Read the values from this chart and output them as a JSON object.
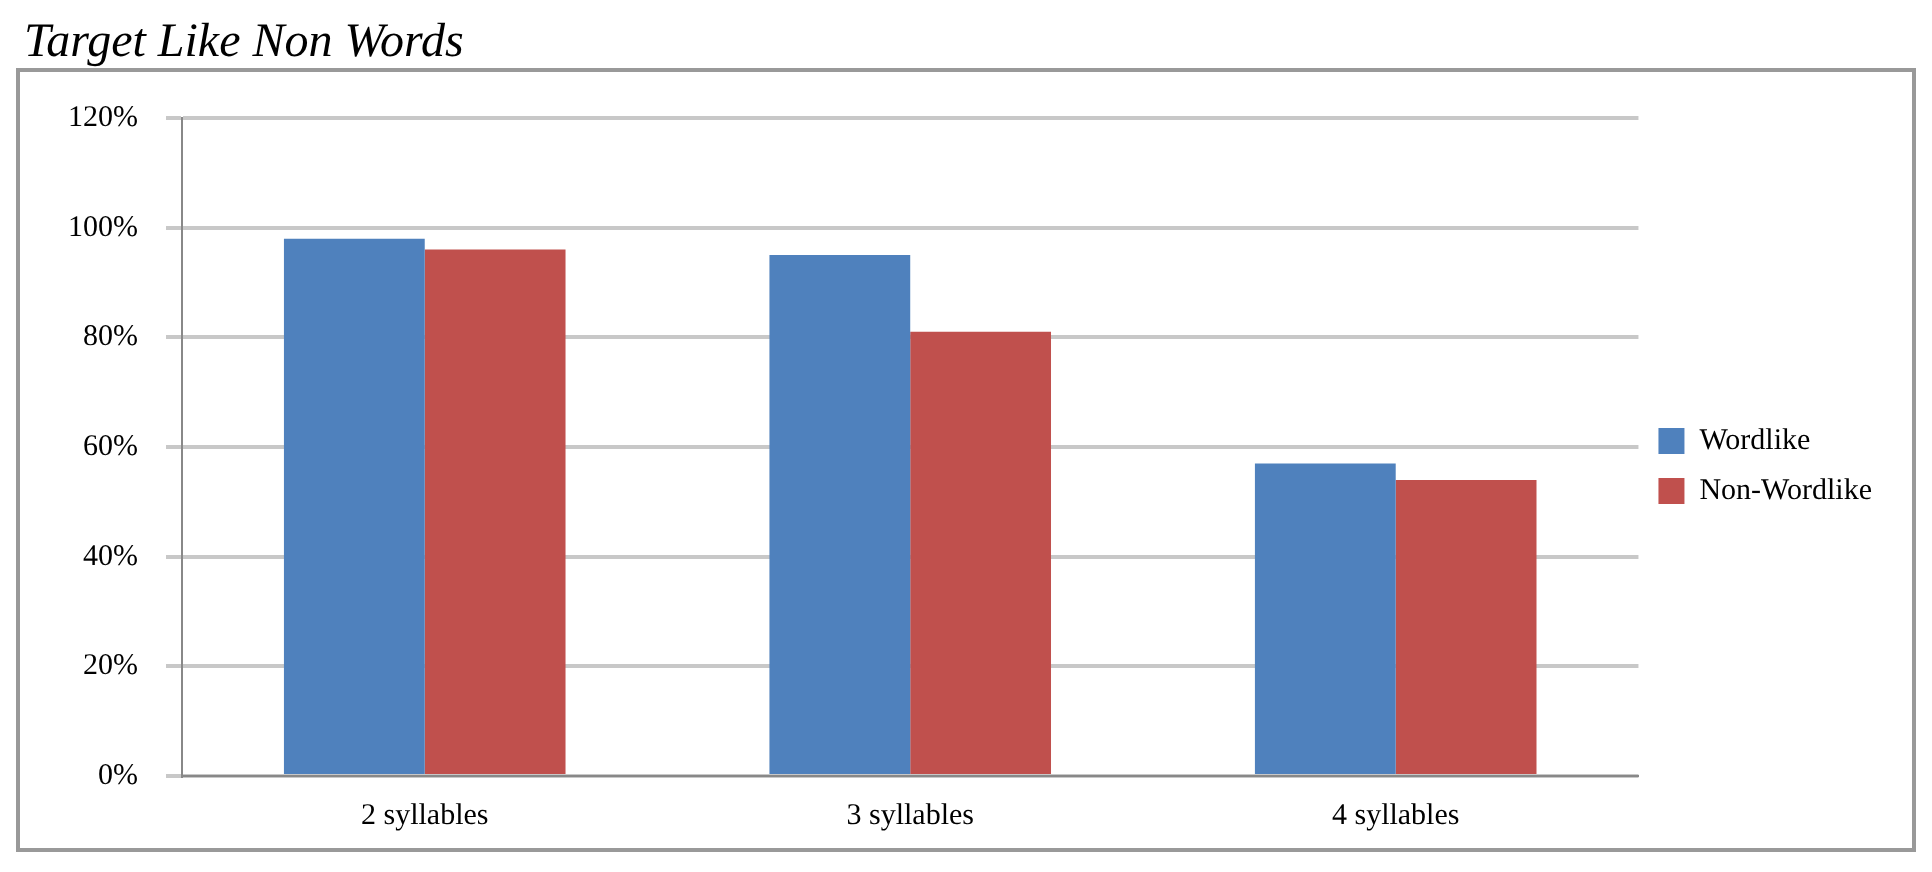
{
  "chart_data": {
    "type": "bar",
    "title": "Target Like Non Words",
    "categories": [
      "2 syllables",
      "3 syllables",
      "4 syllables"
    ],
    "series": [
      {
        "name": "Wordlike",
        "color": "#4f81bd",
        "values": [
          98,
          95,
          57
        ]
      },
      {
        "name": "Non-Wordlike",
        "color": "#c0504d",
        "values": [
          96,
          81,
          54
        ]
      }
    ],
    "ylim": [
      0,
      120
    ],
    "yticks": [
      {
        "value": 0,
        "label": "0%"
      },
      {
        "value": 20,
        "label": "20%"
      },
      {
        "value": 40,
        "label": "40%"
      },
      {
        "value": 60,
        "label": "60%"
      },
      {
        "value": 80,
        "label": "80%"
      },
      {
        "value": 100,
        "label": "100%"
      },
      {
        "value": 120,
        "label": "120%"
      }
    ],
    "grid": "y",
    "legend": "right"
  }
}
